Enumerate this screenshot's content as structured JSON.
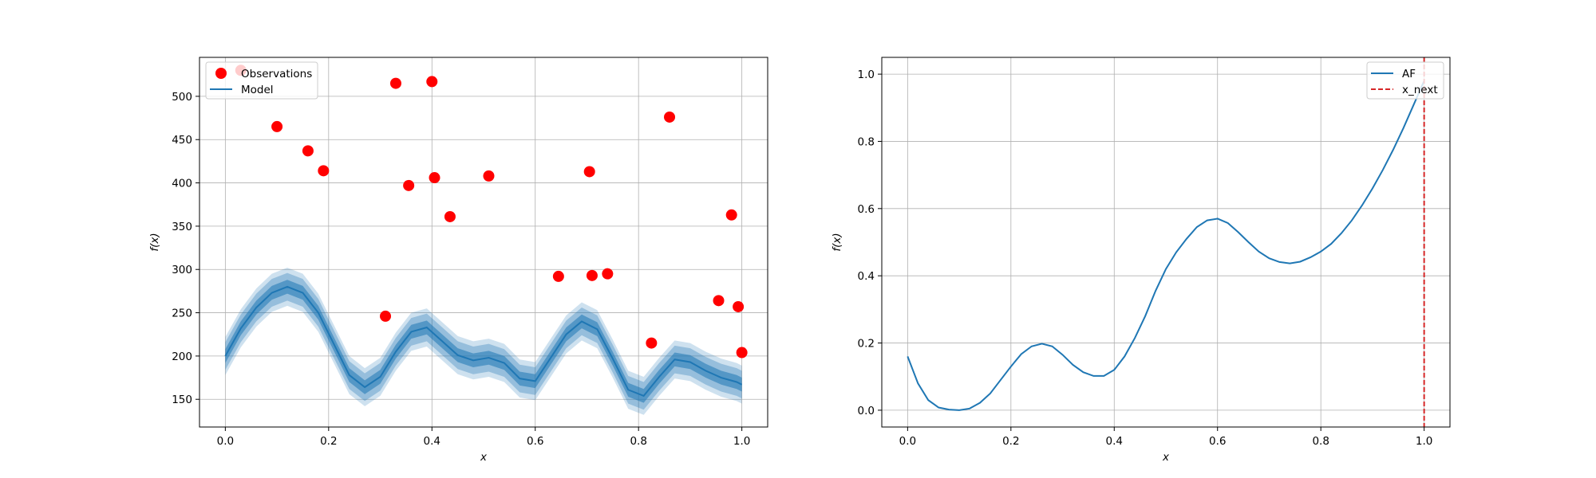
{
  "chart_data": [
    {
      "type": "line",
      "panel": "left",
      "xlabel": "x",
      "ylabel": "f(x)",
      "xlim": [
        -0.05,
        1.05
      ],
      "ylim": [
        118,
        545
      ],
      "xticks": [
        0.0,
        0.2,
        0.4,
        0.6,
        0.8,
        1.0
      ],
      "xtick_labels": [
        "0.0",
        "0.2",
        "0.4",
        "0.6",
        "0.8",
        "1.0"
      ],
      "yticks": [
        150,
        200,
        250,
        300,
        350,
        400,
        450,
        500
      ],
      "ytick_labels": [
        "150",
        "200",
        "250",
        "300",
        "350",
        "400",
        "450",
        "500"
      ],
      "grid": true,
      "legend": {
        "position": "top-left",
        "entries": [
          "Observations",
          "Model"
        ]
      },
      "colors": {
        "observations": "#ff0000",
        "model": "#1f77b4"
      },
      "series": [
        {
          "name": "Observations",
          "kind": "scatter",
          "x": [
            0.03,
            0.1,
            0.16,
            0.19,
            0.31,
            0.33,
            0.355,
            0.4,
            0.405,
            0.435,
            0.51,
            0.645,
            0.705,
            0.71,
            0.74,
            0.825,
            0.86,
            0.955,
            0.98,
            0.993,
            1.0
          ],
          "y": [
            530,
            465,
            437,
            414,
            246,
            515,
            397,
            517,
            406,
            361,
            408,
            292,
            413,
            293,
            295,
            215,
            476,
            264,
            363,
            257,
            204
          ]
        },
        {
          "name": "Model",
          "kind": "line",
          "x": [
            0.0,
            0.03,
            0.06,
            0.09,
            0.12,
            0.15,
            0.18,
            0.21,
            0.24,
            0.27,
            0.3,
            0.33,
            0.36,
            0.39,
            0.42,
            0.45,
            0.48,
            0.51,
            0.54,
            0.57,
            0.6,
            0.63,
            0.66,
            0.69,
            0.72,
            0.75,
            0.78,
            0.81,
            0.84,
            0.87,
            0.9,
            0.93,
            0.96,
            0.99,
            1.0
          ],
          "y": [
            200,
            232,
            256,
            273,
            280,
            273,
            250,
            214,
            178,
            164,
            176,
            205,
            228,
            233,
            217,
            201,
            195,
            198,
            192,
            174,
            171,
            198,
            225,
            240,
            231,
            197,
            161,
            154,
            176,
            196,
            193,
            183,
            175,
            170,
            167
          ]
        }
      ],
      "uncertainty_band_offsets": [
        8,
        16,
        22
      ]
    },
    {
      "type": "line",
      "panel": "right",
      "xlabel": "x",
      "ylabel": "f(x)",
      "xlim": [
        -0.05,
        1.05
      ],
      "ylim": [
        -0.05,
        1.05
      ],
      "xticks": [
        0.0,
        0.2,
        0.4,
        0.6,
        0.8,
        1.0
      ],
      "xtick_labels": [
        "0.0",
        "0.2",
        "0.4",
        "0.6",
        "0.8",
        "1.0"
      ],
      "yticks": [
        0.0,
        0.2,
        0.4,
        0.6,
        0.8,
        1.0
      ],
      "ytick_labels": [
        "0.0",
        "0.2",
        "0.4",
        "0.6",
        "0.8",
        "1.0"
      ],
      "grid": true,
      "legend": {
        "position": "top-right",
        "entries": [
          "AF",
          "x_next"
        ]
      },
      "colors": {
        "af": "#1f77b4",
        "x_next": "#d62728"
      },
      "series": [
        {
          "name": "AF",
          "kind": "line",
          "x": [
            0.0,
            0.02,
            0.04,
            0.06,
            0.08,
            0.1,
            0.12,
            0.14,
            0.16,
            0.18,
            0.2,
            0.22,
            0.24,
            0.26,
            0.28,
            0.3,
            0.32,
            0.34,
            0.36,
            0.38,
            0.4,
            0.42,
            0.44,
            0.46,
            0.48,
            0.5,
            0.52,
            0.54,
            0.56,
            0.58,
            0.6,
            0.62,
            0.64,
            0.66,
            0.68,
            0.7,
            0.72,
            0.74,
            0.76,
            0.78,
            0.8,
            0.82,
            0.84,
            0.86,
            0.88,
            0.9,
            0.92,
            0.94,
            0.96,
            0.98,
            1.0
          ],
          "y": [
            0.16,
            0.08,
            0.03,
            0.008,
            0.002,
            0.0,
            0.005,
            0.022,
            0.05,
            0.09,
            0.13,
            0.167,
            0.19,
            0.198,
            0.19,
            0.165,
            0.135,
            0.113,
            0.102,
            0.102,
            0.12,
            0.16,
            0.215,
            0.28,
            0.355,
            0.42,
            0.47,
            0.51,
            0.545,
            0.565,
            0.57,
            0.557,
            0.53,
            0.5,
            0.472,
            0.452,
            0.441,
            0.437,
            0.442,
            0.455,
            0.472,
            0.495,
            0.527,
            0.565,
            0.61,
            0.66,
            0.715,
            0.775,
            0.84,
            0.91,
            0.98
          ]
        },
        {
          "name": "x_next",
          "kind": "vline",
          "x": 1.0
        }
      ]
    }
  ]
}
